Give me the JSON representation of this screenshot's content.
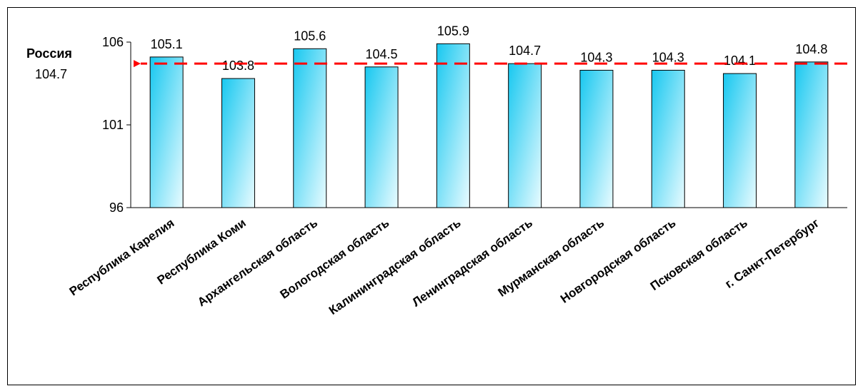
{
  "chart_data": {
    "type": "bar",
    "categories": [
      "Республика Карелия",
      "Республика Коми",
      "Архангельская область",
      "Вологодская область",
      "Калининградская область",
      "Ленинградская область",
      "Мурманская область",
      "Новгородская область",
      "Псковская область",
      "г. Санкт-Петербург"
    ],
    "values": [
      105.1,
      103.8,
      105.6,
      104.5,
      105.9,
      104.7,
      104.3,
      104.3,
      104.1,
      104.8
    ],
    "data_labels": [
      "105.1",
      "103.8",
      "105.6",
      "104.5",
      "105.9",
      "104.7",
      "104.3",
      "104.3",
      "104.1",
      "104.8"
    ],
    "ylim": [
      96,
      106
    ],
    "yticks": [
      96,
      101,
      106
    ],
    "ytick_labels": [
      "96",
      "101",
      "106"
    ],
    "title": "",
    "xlabel": "",
    "ylabel": "",
    "grid": false,
    "legend": "none",
    "reference_line": {
      "name": "Россия",
      "value": 104.7,
      "value_label": "104.7",
      "color": "#ff0000",
      "style": "dashed"
    },
    "bar_gradient": [
      "#18c8f0",
      "#e9fbff"
    ],
    "bar_outline": "#000000"
  }
}
